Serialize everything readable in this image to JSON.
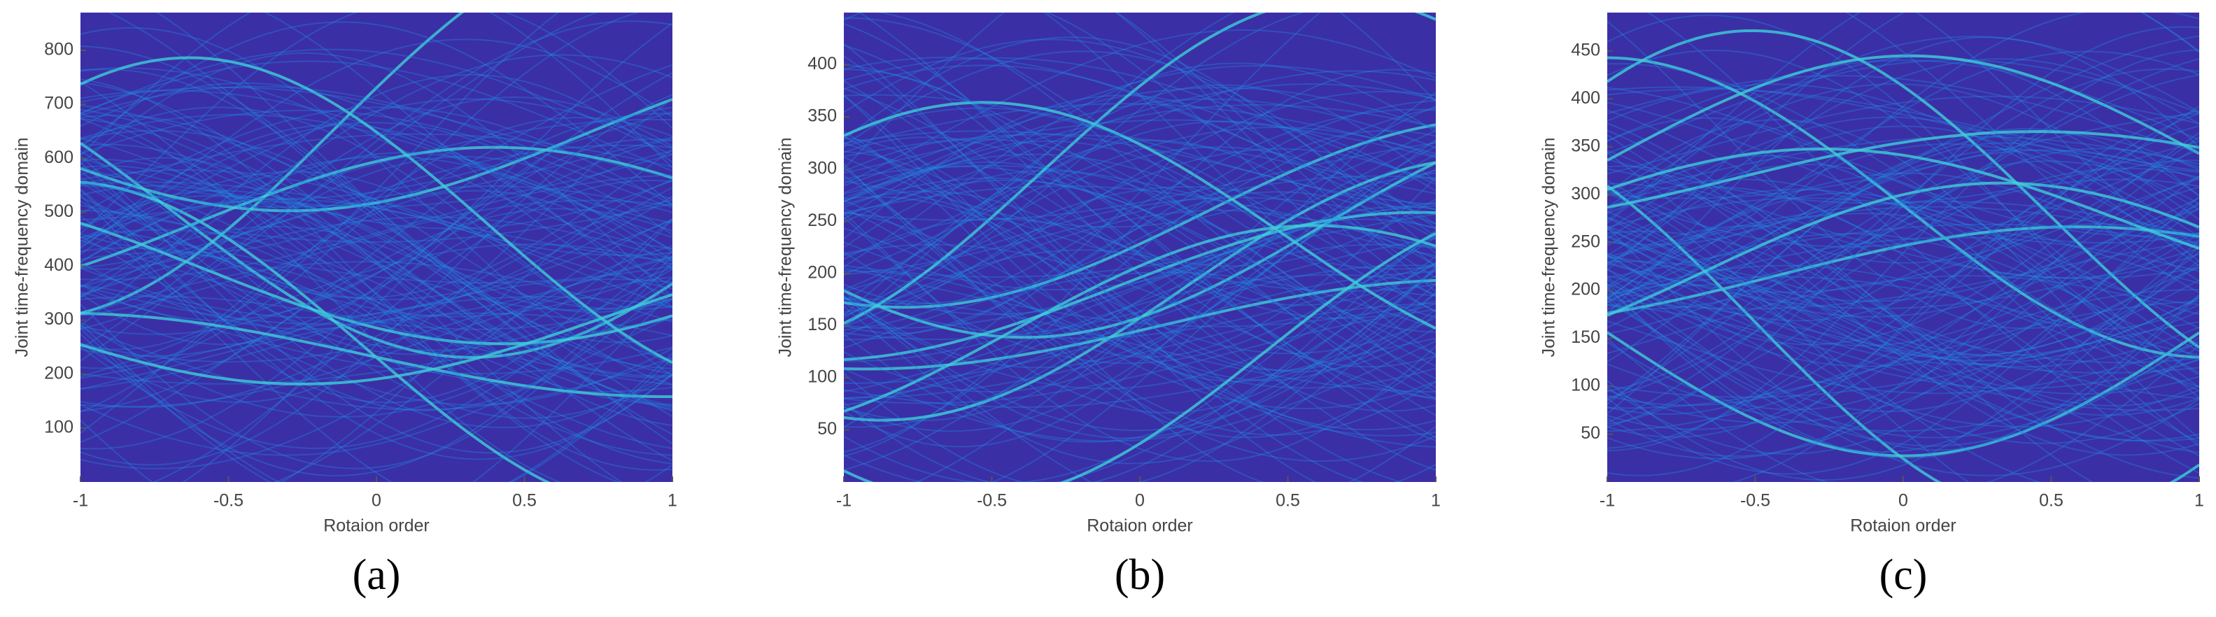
{
  "chart_data": [
    {
      "type": "heatmap",
      "caption": "(a)",
      "x_label": "Rotaion order",
      "y_label": "Joint time-frequency domain",
      "xlim": [
        -1,
        1
      ],
      "xticks": [
        -1,
        -0.5,
        0,
        0.5,
        1
      ],
      "ylim": [
        0,
        870
      ],
      "yticks": [
        100,
        200,
        300,
        400,
        500,
        600,
        700,
        800
      ],
      "background_color": "#3b2fa6",
      "line_color": "#1f8be6"
    },
    {
      "type": "heatmap",
      "caption": "(b)",
      "x_label": "Rotaion order",
      "y_label": "Joint time-frequency domain",
      "xlim": [
        -1,
        1
      ],
      "xticks": [
        -1,
        -0.5,
        0,
        0.5,
        1
      ],
      "ylim": [
        0,
        450
      ],
      "yticks": [
        50,
        100,
        150,
        200,
        250,
        300,
        350,
        400
      ],
      "background_color": "#3b2fa6",
      "line_color": "#1f8be6"
    },
    {
      "type": "heatmap",
      "caption": "(c)",
      "x_label": "Rotaion order",
      "y_label": "Joint time-frequency domain",
      "xlim": [
        -1,
        1
      ],
      "xticks": [
        -1,
        -0.5,
        0,
        0.5,
        1
      ],
      "ylim": [
        0,
        490
      ],
      "yticks": [
        50,
        100,
        150,
        200,
        250,
        300,
        350,
        400,
        450
      ],
      "background_color": "#3b2fa6",
      "line_color": "#1f8be6"
    }
  ]
}
